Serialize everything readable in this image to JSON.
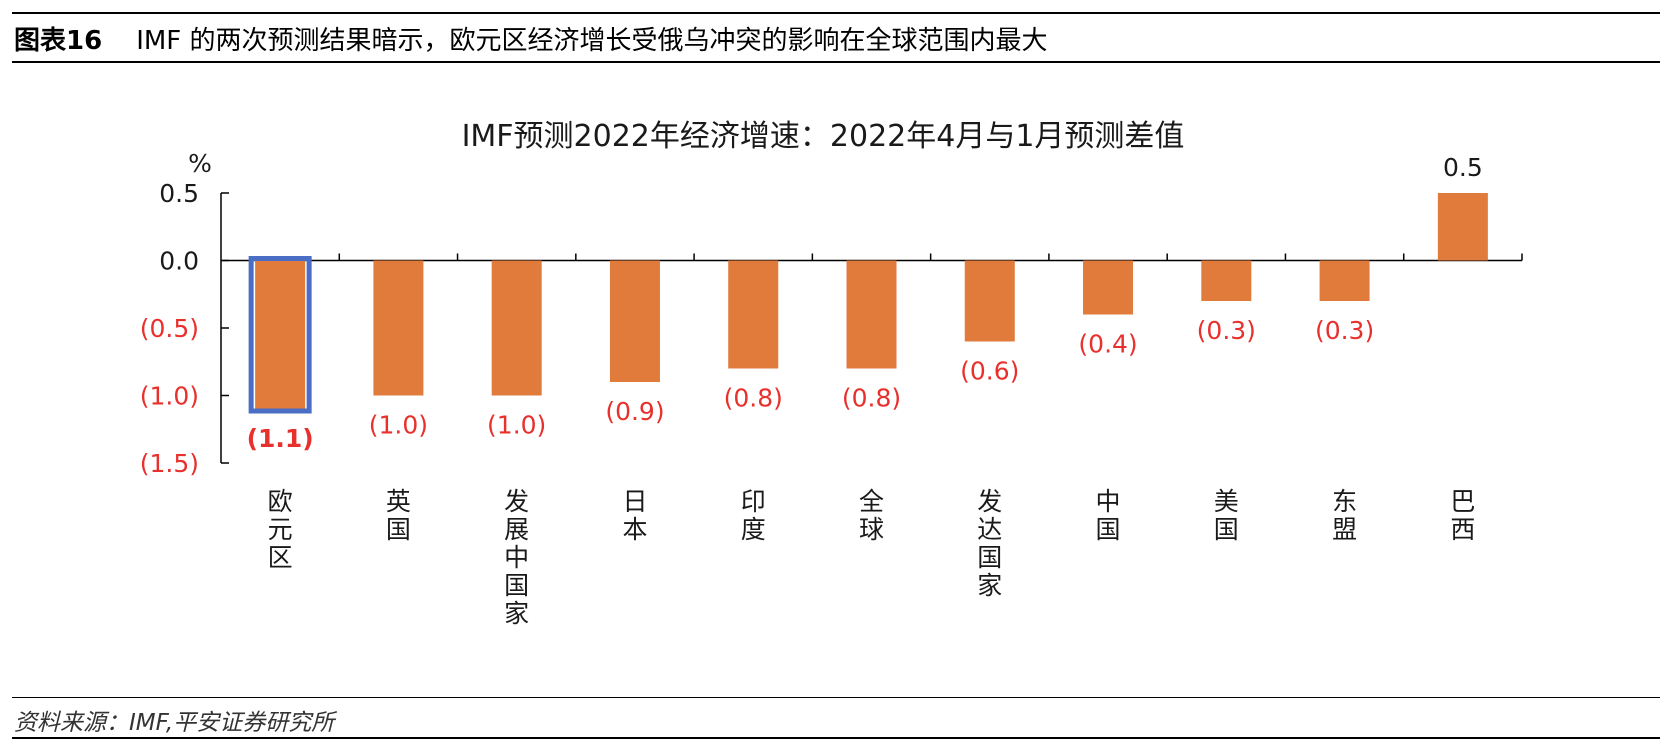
{
  "figure": {
    "label": "图表16",
    "caption": "IMF 的两次预测结果暗示，欧元区经济增长受俄乌冲突的影响在全球范围内最大"
  },
  "source": "资料来源：IMF,平安证券研究所",
  "colors": {
    "bar": "#E07B3C",
    "highlight_border": "#4A6EC5",
    "negative_label": "#E8302C",
    "positive_label": "#1A1A1A"
  },
  "chart_data": {
    "type": "bar",
    "title": "IMF预测2022年经济增速：2022年4月与1月预测差值",
    "ylabel": "%",
    "xlabel": "",
    "ylim": [
      -1.5,
      0.5
    ],
    "y_ticks": [
      0.5,
      0.0,
      -0.5,
      -1.0,
      -1.5
    ],
    "y_tick_labels": [
      "0.5",
      "0.0",
      "(0.5)",
      "(1.0)",
      "(1.5)"
    ],
    "categories": [
      "欧元区",
      "英国",
      "发展中国家",
      "日本",
      "印度",
      "全球",
      "发达国家",
      "中国",
      "美国",
      "东盟",
      "巴西"
    ],
    "values": [
      -1.1,
      -1.0,
      -1.0,
      -0.9,
      -0.8,
      -0.8,
      -0.6,
      -0.4,
      -0.3,
      -0.3,
      0.5
    ],
    "data_labels": [
      "(1.1)",
      "(1.0)",
      "(1.0)",
      "(0.9)",
      "(0.8)",
      "(0.8)",
      "(0.6)",
      "(0.4)",
      "(0.3)",
      "(0.3)",
      "0.5"
    ],
    "highlighted_category": "欧元区",
    "grid": false,
    "legend": "none"
  }
}
